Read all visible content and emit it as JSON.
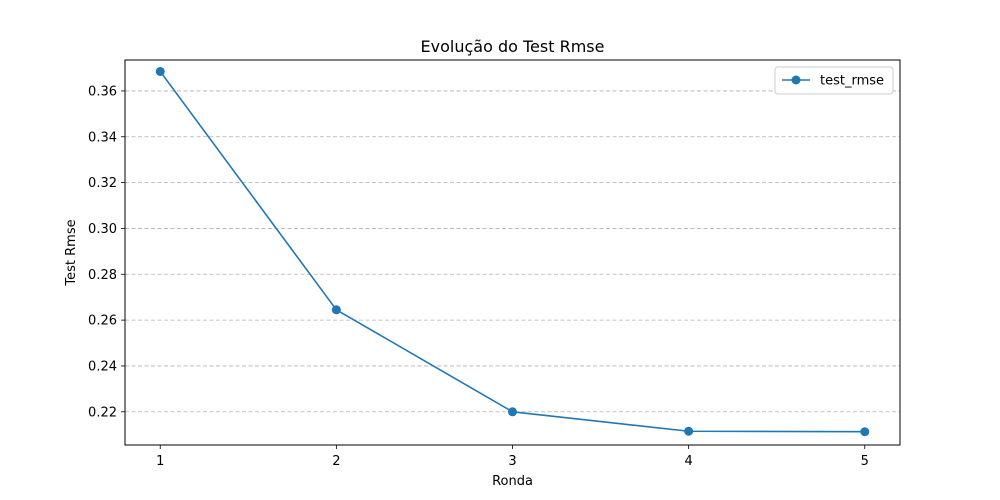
{
  "chart_data": {
    "type": "line",
    "title": "Evolução do Test Rmse",
    "xlabel": "Ronda",
    "ylabel": "Test Rmse",
    "x": [
      1,
      2,
      3,
      4,
      5
    ],
    "xticks": [
      "1",
      "2",
      "3",
      "4",
      "5"
    ],
    "yticks": [
      "0.22",
      "0.24",
      "0.26",
      "0.28",
      "0.30",
      "0.32",
      "0.34",
      "0.36"
    ],
    "ylim": [
      0.2055,
      0.3735
    ],
    "xlim": [
      0.8,
      5.2
    ],
    "grid": "horizontal dashed",
    "legend_position": "top-right",
    "series": [
      {
        "name": "test_rmse",
        "color": "#1f77b4",
        "marker": "circle",
        "values": [
          0.3685,
          0.2645,
          0.22,
          0.2115,
          0.2113
        ]
      }
    ]
  }
}
